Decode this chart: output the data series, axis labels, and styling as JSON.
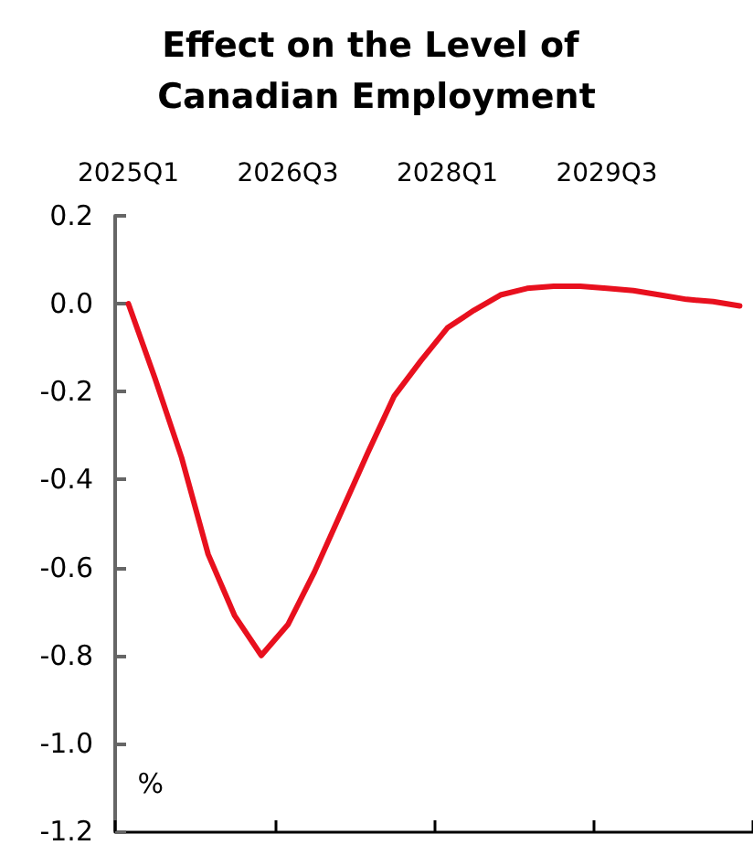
{
  "chart_data": {
    "type": "line",
    "title": "Effect on the Level of Canadian Employment",
    "ylabel": "%",
    "categories": [
      "2025Q1",
      null,
      null,
      null,
      null,
      null,
      "2026Q3",
      null,
      null,
      null,
      null,
      null,
      "2028Q1",
      null,
      null,
      null,
      null,
      null,
      "2029Q3",
      null,
      null,
      null,
      null,
      null
    ],
    "series": [
      {
        "color": "#e8101e",
        "values": [
          0,
          -0.17,
          -0.35,
          -0.57,
          -0.71,
          -0.8,
          -0.73,
          -0.61,
          -0.475,
          -0.34,
          -0.21,
          -0.13,
          -0.055,
          -0.015,
          0.02,
          0.035,
          0.04,
          0.04,
          0.035,
          0.03,
          0.02,
          0.01,
          0.005,
          -0.005
        ]
      }
    ],
    "ylim": [
      -1.2,
      0.2
    ],
    "yticks": [
      {
        "value": 0.2,
        "label": "0.2"
      },
      {
        "value": 0,
        "label": "0.0"
      },
      {
        "value": -0.2,
        "label": "-0.2"
      },
      {
        "value": -0.4,
        "label": "-0.4"
      },
      {
        "value": -0.6,
        "label": "-0.6"
      },
      {
        "value": -0.8,
        "label": "-0.8"
      },
      {
        "value": -1,
        "label": "-1.0"
      },
      {
        "value": -1.2,
        "label": "-1.2"
      }
    ]
  }
}
